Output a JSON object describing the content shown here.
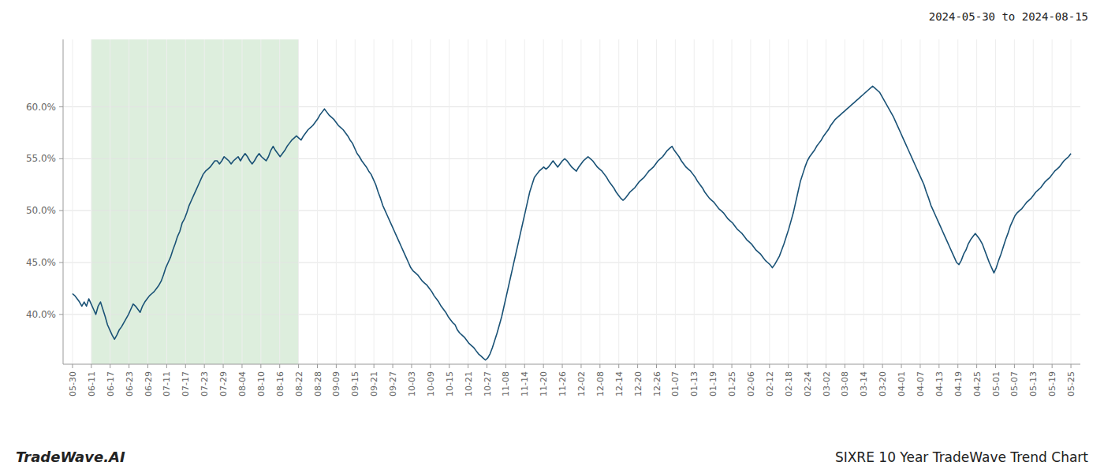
{
  "chart_data": {
    "type": "line",
    "title": "SIXRE 10 Year TradeWave Trend Chart",
    "subtitle": "2024-05-30 to 2024-08-15",
    "annotations": [
      "TradeWave.AI"
    ],
    "color": "#1a5276",
    "grid": true,
    "shade": {
      "from": 1,
      "to": 12,
      "color": "#ddeedd"
    },
    "ylim": [
      0.352,
      0.665
    ],
    "yticks": [
      {
        "value": 0.4,
        "label": "40.0%"
      },
      {
        "value": 0.45,
        "label": "45.0%"
      },
      {
        "value": 0.5,
        "label": "50.0%"
      },
      {
        "value": 0.55,
        "label": "55.0%"
      },
      {
        "value": 0.6,
        "label": "60.0%"
      }
    ],
    "xlim": [
      -0.5,
      53.5
    ],
    "xticks": [
      {
        "value": 0,
        "label": "05-30"
      },
      {
        "value": 1,
        "label": "06-11"
      },
      {
        "value": 2,
        "label": "06-17"
      },
      {
        "value": 3,
        "label": "06-23"
      },
      {
        "value": 4,
        "label": "06-29"
      },
      {
        "value": 5,
        "label": "07-11"
      },
      {
        "value": 6,
        "label": "07-17"
      },
      {
        "value": 7,
        "label": "07-23"
      },
      {
        "value": 8,
        "label": "07-29"
      },
      {
        "value": 9,
        "label": "08-04"
      },
      {
        "value": 10,
        "label": "08-10"
      },
      {
        "value": 11,
        "label": "08-16"
      },
      {
        "value": 12,
        "label": "08-22"
      },
      {
        "value": 13,
        "label": "08-28"
      },
      {
        "value": 14,
        "label": "09-09"
      },
      {
        "value": 15,
        "label": "09-15"
      },
      {
        "value": 16,
        "label": "09-21"
      },
      {
        "value": 17,
        "label": "09-27"
      },
      {
        "value": 18,
        "label": "10-03"
      },
      {
        "value": 19,
        "label": "10-09"
      },
      {
        "value": 20,
        "label": "10-15"
      },
      {
        "value": 21,
        "label": "10-21"
      },
      {
        "value": 22,
        "label": "10-27"
      },
      {
        "value": 23,
        "label": "11-08"
      },
      {
        "value": 24,
        "label": "11-14"
      },
      {
        "value": 25,
        "label": "11-20"
      },
      {
        "value": 26,
        "label": "11-26"
      },
      {
        "value": 27,
        "label": "12-02"
      },
      {
        "value": 28,
        "label": "12-08"
      },
      {
        "value": 29,
        "label": "12-14"
      },
      {
        "value": 30,
        "label": "12-20"
      },
      {
        "value": 31,
        "label": "12-26"
      },
      {
        "value": 32,
        "label": "01-07"
      },
      {
        "value": 33,
        "label": "01-13"
      },
      {
        "value": 34,
        "label": "01-19"
      },
      {
        "value": 35,
        "label": "01-25"
      },
      {
        "value": 36,
        "label": "02-06"
      },
      {
        "value": 37,
        "label": "02-12"
      },
      {
        "value": 38,
        "label": "02-18"
      },
      {
        "value": 39,
        "label": "02-24"
      },
      {
        "value": 40,
        "label": "03-02"
      },
      {
        "value": 41,
        "label": "03-08"
      },
      {
        "value": 42,
        "label": "03-14"
      },
      {
        "value": 43,
        "label": "03-20"
      },
      {
        "value": 44,
        "label": "04-01"
      },
      {
        "value": 45,
        "label": "04-07"
      },
      {
        "value": 46,
        "label": "04-13"
      },
      {
        "value": 47,
        "label": "04-19"
      },
      {
        "value": 48,
        "label": "04-25"
      },
      {
        "value": 49,
        "label": "05-01"
      },
      {
        "value": 50,
        "label": "05-07"
      },
      {
        "value": 51,
        "label": "05-13"
      },
      {
        "value": 52,
        "label": "05-19"
      },
      {
        "value": 53,
        "label": "05-25"
      }
    ],
    "values": [
      0.42,
      0.418,
      0.415,
      0.412,
      0.408,
      0.412,
      0.408,
      0.415,
      0.41,
      0.405,
      0.4,
      0.408,
      0.412,
      0.405,
      0.398,
      0.39,
      0.385,
      0.38,
      0.376,
      0.38,
      0.385,
      0.388,
      0.392,
      0.396,
      0.4,
      0.405,
      0.41,
      0.408,
      0.405,
      0.402,
      0.408,
      0.412,
      0.415,
      0.418,
      0.42,
      0.422,
      0.425,
      0.428,
      0.432,
      0.438,
      0.445,
      0.45,
      0.455,
      0.462,
      0.468,
      0.475,
      0.48,
      0.488,
      0.492,
      0.498,
      0.505,
      0.51,
      0.515,
      0.52,
      0.525,
      0.53,
      0.535,
      0.538,
      0.54,
      0.542,
      0.545,
      0.548,
      0.548,
      0.545,
      0.548,
      0.552,
      0.55,
      0.548,
      0.545,
      0.548,
      0.55,
      0.552,
      0.548,
      0.552,
      0.555,
      0.552,
      0.548,
      0.545,
      0.548,
      0.552,
      0.555,
      0.552,
      0.55,
      0.548,
      0.552,
      0.558,
      0.562,
      0.558,
      0.555,
      0.552,
      0.555,
      0.558,
      0.562,
      0.565,
      0.568,
      0.57,
      0.572,
      0.57,
      0.568,
      0.572,
      0.575,
      0.578,
      0.58,
      0.582,
      0.585,
      0.588,
      0.592,
      0.595,
      0.598,
      0.595,
      0.592,
      0.59,
      0.588,
      0.585,
      0.582,
      0.58,
      0.578,
      0.575,
      0.572,
      0.568,
      0.565,
      0.56,
      0.555,
      0.552,
      0.548,
      0.545,
      0.542,
      0.538,
      0.535,
      0.53,
      0.525,
      0.518,
      0.512,
      0.505,
      0.5,
      0.495,
      0.49,
      0.485,
      0.48,
      0.475,
      0.47,
      0.465,
      0.46,
      0.455,
      0.45,
      0.445,
      0.442,
      0.44,
      0.438,
      0.435,
      0.432,
      0.43,
      0.428,
      0.425,
      0.422,
      0.418,
      0.415,
      0.412,
      0.408,
      0.405,
      0.402,
      0.398,
      0.395,
      0.392,
      0.39,
      0.385,
      0.382,
      0.38,
      0.378,
      0.375,
      0.372,
      0.37,
      0.368,
      0.365,
      0.362,
      0.36,
      0.358,
      0.356,
      0.358,
      0.362,
      0.368,
      0.375,
      0.382,
      0.39,
      0.398,
      0.408,
      0.418,
      0.428,
      0.438,
      0.448,
      0.458,
      0.468,
      0.478,
      0.488,
      0.498,
      0.508,
      0.518,
      0.525,
      0.532,
      0.535,
      0.538,
      0.54,
      0.542,
      0.54,
      0.542,
      0.545,
      0.548,
      0.545,
      0.542,
      0.545,
      0.548,
      0.55,
      0.548,
      0.545,
      0.542,
      0.54,
      0.538,
      0.542,
      0.545,
      0.548,
      0.55,
      0.552,
      0.55,
      0.548,
      0.545,
      0.542,
      0.54,
      0.538,
      0.535,
      0.532,
      0.528,
      0.525,
      0.522,
      0.518,
      0.515,
      0.512,
      0.51,
      0.512,
      0.515,
      0.518,
      0.52,
      0.522,
      0.525,
      0.528,
      0.53,
      0.532,
      0.535,
      0.538,
      0.54,
      0.542,
      0.545,
      0.548,
      0.55,
      0.552,
      0.555,
      0.558,
      0.56,
      0.562,
      0.558,
      0.555,
      0.552,
      0.548,
      0.545,
      0.542,
      0.54,
      0.538,
      0.535,
      0.532,
      0.528,
      0.525,
      0.522,
      0.518,
      0.515,
      0.512,
      0.51,
      0.508,
      0.505,
      0.502,
      0.5,
      0.498,
      0.495,
      0.492,
      0.49,
      0.488,
      0.485,
      0.482,
      0.48,
      0.478,
      0.475,
      0.472,
      0.47,
      0.468,
      0.465,
      0.462,
      0.46,
      0.458,
      0.455,
      0.452,
      0.45,
      0.448,
      0.445,
      0.448,
      0.452,
      0.456,
      0.462,
      0.468,
      0.475,
      0.482,
      0.49,
      0.498,
      0.508,
      0.518,
      0.528,
      0.535,
      0.542,
      0.548,
      0.552,
      0.555,
      0.558,
      0.562,
      0.565,
      0.568,
      0.572,
      0.575,
      0.578,
      0.582,
      0.585,
      0.588,
      0.59,
      0.592,
      0.594,
      0.596,
      0.598,
      0.6,
      0.602,
      0.604,
      0.606,
      0.608,
      0.61,
      0.612,
      0.614,
      0.616,
      0.618,
      0.62,
      0.618,
      0.616,
      0.614,
      0.61,
      0.606,
      0.602,
      0.598,
      0.594,
      0.59,
      0.585,
      0.58,
      0.575,
      0.57,
      0.565,
      0.56,
      0.555,
      0.55,
      0.545,
      0.54,
      0.535,
      0.53,
      0.525,
      0.518,
      0.512,
      0.505,
      0.5,
      0.495,
      0.49,
      0.485,
      0.48,
      0.475,
      0.47,
      0.465,
      0.46,
      0.455,
      0.45,
      0.448,
      0.452,
      0.458,
      0.462,
      0.468,
      0.472,
      0.475,
      0.478,
      0.475,
      0.472,
      0.468,
      0.462,
      0.456,
      0.45,
      0.445,
      0.44,
      0.445,
      0.452,
      0.458,
      0.465,
      0.472,
      0.478,
      0.485,
      0.49,
      0.495,
      0.498,
      0.5,
      0.502,
      0.505,
      0.508,
      0.51,
      0.512,
      0.515,
      0.518,
      0.52,
      0.522,
      0.525,
      0.528,
      0.53,
      0.532,
      0.535,
      0.538,
      0.54,
      0.542,
      0.545,
      0.548,
      0.55,
      0.552,
      0.555
    ]
  }
}
